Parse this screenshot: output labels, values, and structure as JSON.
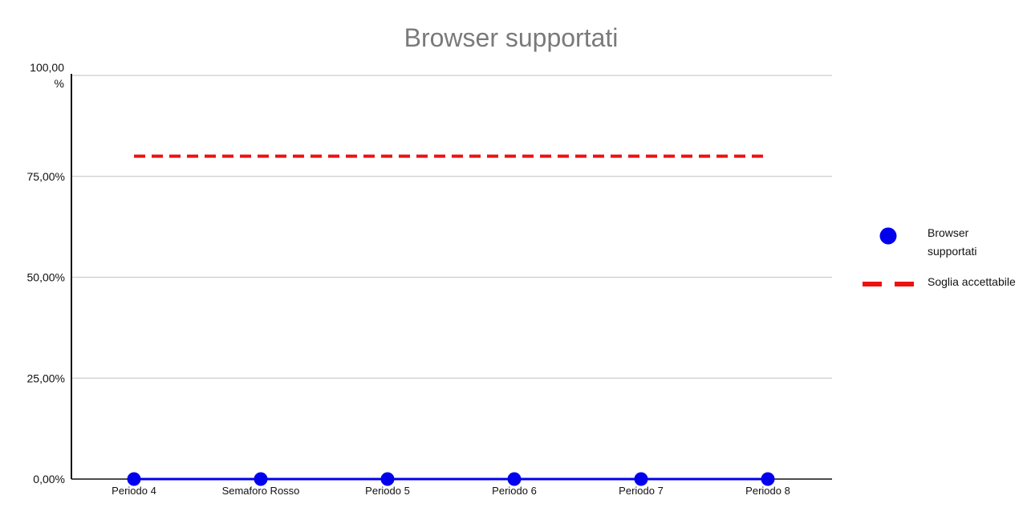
{
  "chart_data": {
    "type": "line",
    "title": "Browser supportati",
    "xlabel": "",
    "ylabel": "",
    "categories": [
      "Periodo 4",
      "Semaforo Rosso",
      "Periodo 5",
      "Periodo 6",
      "Periodo 7",
      "Periodo 8"
    ],
    "ylim": [
      0,
      100
    ],
    "yticks": [
      0,
      25,
      50,
      75,
      100
    ],
    "ytick_labels": [
      "0,00%",
      "25,00%",
      "50,00%",
      "75,00%",
      "100,00 %"
    ],
    "grid": true,
    "legend_position": "right",
    "series": [
      {
        "name": "Browser supportati",
        "style": "line-with-markers",
        "color": "#0000ee",
        "values": [
          0,
          0,
          0,
          0,
          0,
          0
        ]
      },
      {
        "name": "Soglia accettabile",
        "style": "dashed-line",
        "color": "#ee1111",
        "values": [
          80,
          80,
          80,
          80,
          80,
          80
        ]
      }
    ]
  }
}
